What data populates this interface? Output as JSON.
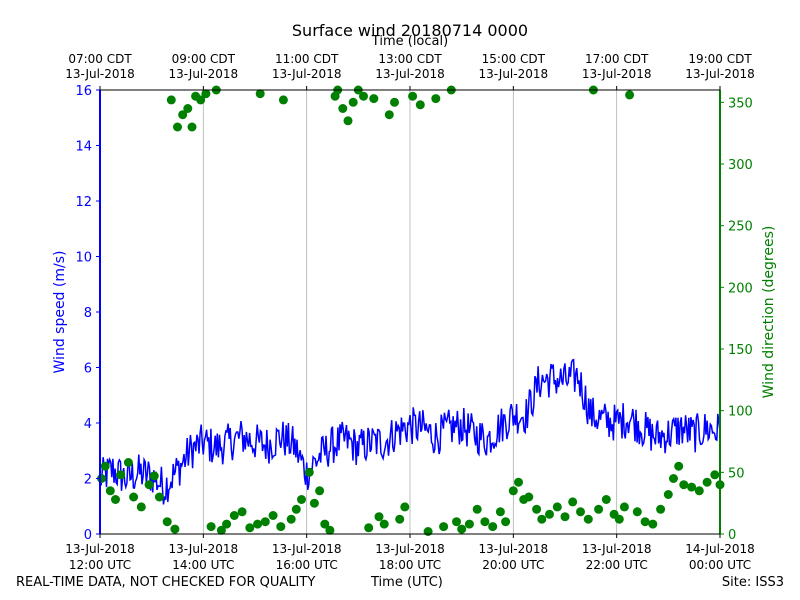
{
  "chart_data": {
    "type": "line",
    "title": "Surface wind 20180714 0000",
    "top_xlabel": "Time (local)",
    "xlabel": "Time (UTC)",
    "ylabel_left": "Wind speed (m/s)",
    "ylabel_right": "Wind direction (degrees)",
    "footer_left": "REAL-TIME DATA, NOT CHECKED FOR QUALITY",
    "footer_right": "Site: ISS3",
    "x_range_utc_hours": [
      12,
      24
    ],
    "ylim_left": [
      0,
      16
    ],
    "ylim_right": [
      0,
      360
    ],
    "left_ticks": [
      0,
      2,
      4,
      6,
      8,
      10,
      12,
      14,
      16
    ],
    "right_ticks": [
      0,
      50,
      100,
      150,
      200,
      250,
      300,
      350
    ],
    "bottom_ticks": [
      {
        "hour": 12,
        "line1": "13-Jul-2018",
        "line2": "12:00 UTC"
      },
      {
        "hour": 14,
        "line1": "13-Jul-2018",
        "line2": "14:00 UTC"
      },
      {
        "hour": 16,
        "line1": "13-Jul-2018",
        "line2": "16:00 UTC"
      },
      {
        "hour": 18,
        "line1": "13-Jul-2018",
        "line2": "18:00 UTC"
      },
      {
        "hour": 20,
        "line1": "13-Jul-2018",
        "line2": "20:00 UTC"
      },
      {
        "hour": 22,
        "line1": "13-Jul-2018",
        "line2": "22:00 UTC"
      },
      {
        "hour": 24,
        "line1": "14-Jul-2018",
        "line2": "00:00 UTC"
      }
    ],
    "top_ticks": [
      {
        "hour": 12,
        "line1": "07:00 CDT",
        "line2": "13-Jul-2018"
      },
      {
        "hour": 14,
        "line1": "09:00 CDT",
        "line2": "13-Jul-2018"
      },
      {
        "hour": 16,
        "line1": "11:00 CDT",
        "line2": "13-Jul-2018"
      },
      {
        "hour": 18,
        "line1": "13:00 CDT",
        "line2": "13-Jul-2018"
      },
      {
        "hour": 20,
        "line1": "15:00 CDT",
        "line2": "13-Jul-2018"
      },
      {
        "hour": 22,
        "line1": "17:00 CDT",
        "line2": "13-Jul-2018"
      },
      {
        "hour": 24,
        "line1": "19:00 CDT",
        "line2": "13-Jul-2018"
      }
    ],
    "grid": "vertical",
    "series": [
      {
        "name": "Wind speed",
        "axis": "left",
        "color": "#0000ff",
        "kind": "line",
        "points": [
          [
            12.0,
            2.0
          ],
          [
            12.25,
            2.3
          ],
          [
            12.5,
            2.0
          ],
          [
            12.75,
            2.2
          ],
          [
            13.0,
            2.1
          ],
          [
            13.25,
            1.7
          ],
          [
            13.5,
            2.3
          ],
          [
            13.75,
            3.0
          ],
          [
            14.0,
            3.3
          ],
          [
            14.25,
            3.1
          ],
          [
            14.5,
            3.3
          ],
          [
            14.75,
            3.5
          ],
          [
            15.0,
            3.3
          ],
          [
            15.25,
            3.2
          ],
          [
            15.5,
            3.5
          ],
          [
            15.75,
            3.2
          ],
          [
            16.0,
            2.2
          ],
          [
            16.25,
            2.8
          ],
          [
            16.5,
            3.2
          ],
          [
            16.75,
            3.4
          ],
          [
            17.0,
            3.1
          ],
          [
            17.25,
            3.3
          ],
          [
            17.5,
            3.3
          ],
          [
            17.75,
            3.7
          ],
          [
            18.0,
            3.9
          ],
          [
            18.25,
            3.8
          ],
          [
            18.5,
            3.5
          ],
          [
            18.75,
            3.8
          ],
          [
            19.0,
            3.9
          ],
          [
            19.25,
            3.6
          ],
          [
            19.5,
            3.4
          ],
          [
            19.75,
            3.9
          ],
          [
            20.0,
            4.3
          ],
          [
            20.25,
            4.3
          ],
          [
            20.5,
            5.5
          ],
          [
            20.75,
            5.6
          ],
          [
            21.0,
            5.5
          ],
          [
            21.25,
            5.7
          ],
          [
            21.5,
            4.3
          ],
          [
            21.75,
            4.1
          ],
          [
            22.0,
            4.0
          ],
          [
            22.25,
            4.2
          ],
          [
            22.5,
            3.8
          ],
          [
            22.75,
            3.5
          ],
          [
            23.0,
            3.6
          ],
          [
            23.25,
            3.8
          ],
          [
            23.5,
            3.6
          ],
          [
            23.75,
            3.8
          ],
          [
            24.0,
            3.7
          ]
        ]
      },
      {
        "name": "Wind direction",
        "axis": "right",
        "color": "#008000",
        "kind": "scatter",
        "points": [
          [
            12.03,
            45
          ],
          [
            12.1,
            55
          ],
          [
            12.2,
            35
          ],
          [
            12.3,
            28
          ],
          [
            12.4,
            48
          ],
          [
            12.55,
            58
          ],
          [
            12.65,
            30
          ],
          [
            12.8,
            22
          ],
          [
            12.95,
            40
          ],
          [
            13.05,
            47
          ],
          [
            13.15,
            30
          ],
          [
            13.3,
            10
          ],
          [
            13.38,
            352
          ],
          [
            13.45,
            4
          ],
          [
            13.5,
            330
          ],
          [
            13.6,
            340
          ],
          [
            13.7,
            345
          ],
          [
            13.78,
            330
          ],
          [
            13.85,
            355
          ],
          [
            13.95,
            352
          ],
          [
            14.05,
            357
          ],
          [
            14.15,
            6
          ],
          [
            14.25,
            360
          ],
          [
            14.35,
            3
          ],
          [
            14.45,
            8
          ],
          [
            14.6,
            15
          ],
          [
            14.75,
            18
          ],
          [
            14.9,
            5
          ],
          [
            15.05,
            8
          ],
          [
            15.1,
            357
          ],
          [
            15.2,
            10
          ],
          [
            15.35,
            15
          ],
          [
            15.5,
            6
          ],
          [
            15.55,
            352
          ],
          [
            15.7,
            12
          ],
          [
            15.8,
            20
          ],
          [
            15.9,
            28
          ],
          [
            16.05,
            50
          ],
          [
            16.15,
            25
          ],
          [
            16.25,
            35
          ],
          [
            16.35,
            8
          ],
          [
            16.45,
            3
          ],
          [
            16.55,
            355
          ],
          [
            16.6,
            360
          ],
          [
            16.7,
            345
          ],
          [
            16.8,
            335
          ],
          [
            16.9,
            350
          ],
          [
            17.0,
            360
          ],
          [
            17.1,
            355
          ],
          [
            17.2,
            5
          ],
          [
            17.3,
            353
          ],
          [
            17.4,
            14
          ],
          [
            17.5,
            8
          ],
          [
            17.6,
            340
          ],
          [
            17.7,
            350
          ],
          [
            17.8,
            12
          ],
          [
            17.9,
            22
          ],
          [
            18.05,
            355
          ],
          [
            18.2,
            348
          ],
          [
            18.35,
            2
          ],
          [
            18.5,
            353
          ],
          [
            18.65,
            6
          ],
          [
            18.8,
            360
          ],
          [
            18.9,
            10
          ],
          [
            19.0,
            4
          ],
          [
            19.15,
            8
          ],
          [
            19.3,
            20
          ],
          [
            19.45,
            10
          ],
          [
            19.6,
            6
          ],
          [
            19.75,
            18
          ],
          [
            19.85,
            10
          ],
          [
            20.0,
            35
          ],
          [
            20.1,
            42
          ],
          [
            20.2,
            28
          ],
          [
            20.3,
            30
          ],
          [
            20.45,
            20
          ],
          [
            20.55,
            12
          ],
          [
            20.7,
            16
          ],
          [
            20.85,
            22
          ],
          [
            21.0,
            14
          ],
          [
            21.15,
            26
          ],
          [
            21.3,
            18
          ],
          [
            21.45,
            12
          ],
          [
            21.55,
            360
          ],
          [
            21.65,
            20
          ],
          [
            21.8,
            28
          ],
          [
            21.95,
            16
          ],
          [
            22.05,
            12
          ],
          [
            22.15,
            22
          ],
          [
            22.25,
            356
          ],
          [
            22.4,
            18
          ],
          [
            22.55,
            10
          ],
          [
            22.7,
            8
          ],
          [
            22.85,
            20
          ],
          [
            23.0,
            32
          ],
          [
            23.1,
            45
          ],
          [
            23.2,
            55
          ],
          [
            23.3,
            40
          ],
          [
            23.45,
            38
          ],
          [
            23.6,
            35
          ],
          [
            23.75,
            42
          ],
          [
            23.9,
            48
          ],
          [
            24.0,
            40
          ]
        ]
      }
    ]
  }
}
